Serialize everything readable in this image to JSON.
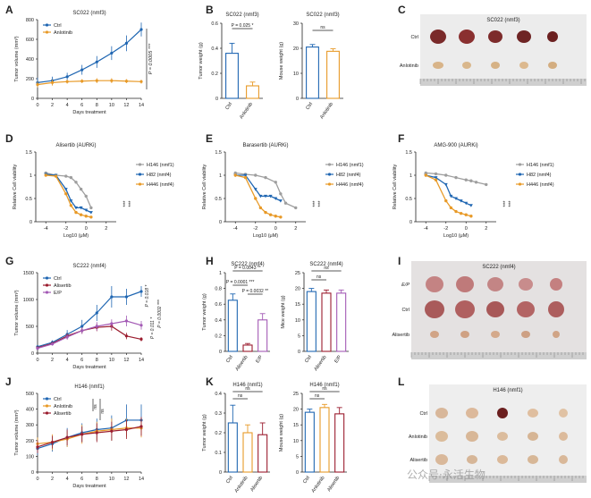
{
  "panel_labels": [
    "A",
    "B",
    "C",
    "D",
    "E",
    "F",
    "G",
    "H",
    "I",
    "J",
    "K",
    "L"
  ],
  "colors": {
    "ctrl": "#1f66b2",
    "anlotinib": "#e89a28",
    "alisertib": "#9b1c2e",
    "ep": "#a35ab5",
    "h146": "#9e9e9e",
    "h82": "#1f66b2",
    "h446": "#e89a28"
  },
  "watermark": "公众号·永活生物",
  "chart_data": [
    {
      "id": "A",
      "type": "line",
      "title": "SC022 (nmf3)",
      "xlabel": "Days treatment",
      "ylabel": "Tumor volume (mm³)",
      "xlim": [
        0,
        14
      ],
      "ylim": [
        0,
        800
      ],
      "yticks": [
        0,
        200,
        400,
        600,
        800
      ],
      "xticks": [
        0,
        2,
        4,
        6,
        8,
        10,
        12,
        14
      ],
      "series": [
        {
          "name": "Ctrl",
          "color": "#1f66b2",
          "x": [
            0,
            2,
            4,
            6,
            8,
            10,
            12,
            14
          ],
          "y": [
            160,
            180,
            220,
            290,
            370,
            460,
            560,
            700
          ],
          "err": [
            50,
            40,
            40,
            50,
            60,
            70,
            80,
            70
          ]
        },
        {
          "name": "Anlotinib",
          "color": "#e89a28",
          "x": [
            0,
            2,
            4,
            6,
            8,
            10,
            12,
            14
          ],
          "y": [
            140,
            160,
            170,
            175,
            180,
            180,
            175,
            170
          ],
          "err": [
            30,
            30,
            20,
            20,
            25,
            25,
            20,
            20
          ]
        }
      ],
      "annotation": "P = 0.0005 ***"
    },
    {
      "id": "B1",
      "type": "bar",
      "title": "SC022 (nmf3)",
      "ylabel": "Tumor weight (g)",
      "ylim": [
        0,
        0.6
      ],
      "yticks": [
        0,
        0.2,
        0.4,
        0.6
      ],
      "categories": [
        "Ctrl",
        "Anlotinib"
      ],
      "values": [
        0.36,
        0.1
      ],
      "err": [
        0.08,
        0.03
      ],
      "colors": [
        "#1f66b2",
        "#e89a28"
      ],
      "annotation": "P = 0.025 *"
    },
    {
      "id": "B2",
      "type": "bar",
      "title": "SC022 (nmf3)",
      "ylabel": "Mouse weight (g)",
      "ylim": [
        0,
        30
      ],
      "yticks": [
        0,
        10,
        20,
        30
      ],
      "categories": [
        "Ctrl",
        "Anlotinib"
      ],
      "values": [
        20.5,
        18.8
      ],
      "err": [
        1,
        1
      ],
      "colors": [
        "#1f66b2",
        "#e89a28"
      ],
      "annotation": "ns"
    },
    {
      "id": "D",
      "type": "line",
      "title": "Alisertib (AURKi)",
      "xlabel": "Log10 (μM)",
      "ylabel": "Relative Cell viability",
      "xlim": [
        -5,
        3
      ],
      "ylim": [
        0,
        1.5
      ],
      "xticks": [
        -4,
        -2,
        0,
        2
      ],
      "yticks": [
        0,
        0.5,
        1.0,
        1.5
      ],
      "series": [
        {
          "name": "H146 (nmf1)",
          "color": "#9e9e9e",
          "x": [
            -4,
            -3,
            -2,
            -1.5,
            -1,
            -0.5,
            0,
            0.5
          ],
          "y": [
            1.05,
            1.0,
            0.98,
            0.95,
            0.85,
            0.7,
            0.55,
            0.3
          ]
        },
        {
          "name": "H82 (nmf4)",
          "color": "#1f66b2",
          "x": [
            -4,
            -3,
            -2,
            -1.5,
            -1,
            -0.5,
            0,
            0.5
          ],
          "y": [
            1.02,
            1.0,
            0.7,
            0.45,
            0.3,
            0.3,
            0.25,
            0.2
          ]
        },
        {
          "name": "H446 (nmf4)",
          "color": "#e89a28",
          "x": [
            -4,
            -3,
            -2,
            -1.5,
            -1,
            -0.5,
            0,
            0.5
          ],
          "y": [
            1.0,
            0.98,
            0.6,
            0.35,
            0.2,
            0.15,
            0.12,
            0.1
          ]
        }
      ],
      "annotation": "*** ***"
    },
    {
      "id": "E",
      "type": "line",
      "title": "Barasertib (AURKi)",
      "xlabel": "Log10 (μM)",
      "ylabel": "Relative Cell viability",
      "xlim": [
        -5,
        3
      ],
      "ylim": [
        0,
        1.5
      ],
      "xticks": [
        -4,
        -2,
        0,
        2
      ],
      "yticks": [
        0,
        0.5,
        1.0,
        1.5
      ],
      "series": [
        {
          "name": "H146 (nmf1)",
          "color": "#9e9e9e",
          "x": [
            -4,
            -3,
            -2,
            -1,
            0,
            0.5,
            1,
            2
          ],
          "y": [
            1.05,
            1.02,
            1.0,
            0.95,
            0.85,
            0.6,
            0.4,
            0.3
          ]
        },
        {
          "name": "H82 (nmf4)",
          "color": "#1f66b2",
          "x": [
            -4,
            -3,
            -2,
            -1.5,
            -1,
            -0.5,
            0,
            0.5
          ],
          "y": [
            1.0,
            1.0,
            0.7,
            0.55,
            0.55,
            0.55,
            0.5,
            0.45
          ]
        },
        {
          "name": "H446 (nmf4)",
          "color": "#e89a28",
          "x": [
            -4,
            -3,
            -2,
            -1.5,
            -1,
            -0.5,
            0,
            0.5
          ],
          "y": [
            1.0,
            0.95,
            0.5,
            0.3,
            0.2,
            0.15,
            0.12,
            0.1
          ]
        }
      ],
      "annotation": "*** ***"
    },
    {
      "id": "F",
      "type": "line",
      "title": "AMG-900 (AURKi)",
      "xlabel": "Log10 (μM)",
      "ylabel": "Relative Cell viability",
      "xlim": [
        -5,
        3
      ],
      "ylim": [
        0,
        1.5
      ],
      "xticks": [
        -4,
        -2,
        0,
        2
      ],
      "yticks": [
        0,
        0.5,
        1.0,
        1.5
      ],
      "series": [
        {
          "name": "H146 (nmf1)",
          "color": "#9e9e9e",
          "x": [
            -4,
            -3,
            -2,
            -1,
            0,
            0.5,
            1,
            2
          ],
          "y": [
            1.05,
            1.03,
            1.0,
            0.95,
            0.9,
            0.88,
            0.85,
            0.8
          ]
        },
        {
          "name": "H82 (nmf4)",
          "color": "#1f66b2",
          "x": [
            -4,
            -3,
            -2,
            -1.5,
            -1,
            -0.5,
            0,
            0.5
          ],
          "y": [
            1.0,
            0.95,
            0.8,
            0.55,
            0.5,
            0.45,
            0.4,
            0.35
          ]
        },
        {
          "name": "H446 (nmf4)",
          "color": "#e89a28",
          "x": [
            -4,
            -3,
            -2,
            -1.5,
            -1,
            -0.5,
            0,
            0.5
          ],
          "y": [
            1.0,
            0.9,
            0.45,
            0.3,
            0.22,
            0.18,
            0.15,
            0.12
          ]
        }
      ],
      "annotation": "*** ***"
    },
    {
      "id": "G",
      "type": "line",
      "title": "SC222 (nmf4)",
      "xlabel": "Days treatment",
      "ylabel": "Tumor volume (mm³)",
      "xlim": [
        0,
        14
      ],
      "ylim": [
        0,
        1500
      ],
      "yticks": [
        0,
        500,
        1000,
        1500
      ],
      "xticks": [
        0,
        2,
        4,
        6,
        8,
        10,
        12,
        14
      ],
      "series": [
        {
          "name": "Ctrl",
          "color": "#1f66b2",
          "x": [
            0,
            2,
            4,
            6,
            8,
            10,
            12,
            14
          ],
          "y": [
            120,
            200,
            350,
            500,
            750,
            1050,
            1050,
            1150
          ],
          "err": [
            30,
            40,
            80,
            120,
            150,
            200,
            150,
            100
          ]
        },
        {
          "name": "Alisertib",
          "color": "#9b1c2e",
          "x": [
            0,
            2,
            4,
            6,
            8,
            10,
            12,
            14
          ],
          "y": [
            100,
            180,
            320,
            420,
            480,
            500,
            320,
            260
          ],
          "err": [
            20,
            30,
            50,
            60,
            70,
            80,
            60,
            40
          ]
        },
        {
          "name": "E/P",
          "color": "#a35ab5",
          "x": [
            0,
            2,
            4,
            6,
            8,
            10,
            12,
            14
          ],
          "y": [
            90,
            170,
            300,
            420,
            500,
            550,
            600,
            520
          ],
          "err": [
            20,
            30,
            50,
            60,
            80,
            80,
            100,
            80
          ]
        }
      ],
      "annotation": "P = 0.018 *  P = 0.011 *  P = 0.0002 ***"
    },
    {
      "id": "H1",
      "type": "bar",
      "title": "SC222 (nmf4)",
      "ylabel": "Tumor weight (g)",
      "ylim": [
        0,
        1.0
      ],
      "yticks": [
        0,
        0.2,
        0.4,
        0.6,
        0.8,
        1.0
      ],
      "categories": [
        "Ctrl",
        "Alisertib",
        "E/P"
      ],
      "values": [
        0.65,
        0.08,
        0.4
      ],
      "err": [
        0.08,
        0.02,
        0.08
      ],
      "colors": [
        "#1f66b2",
        "#9b1c2e",
        "#a35ab5"
      ],
      "annotation": "P = 0.0043 **  P = 0.0001 ***  P = 0.0032 **"
    },
    {
      "id": "H2",
      "type": "bar",
      "title": "SC222 (nmf4)",
      "ylabel": "Mice weight (g)",
      "ylim": [
        0,
        25
      ],
      "yticks": [
        0,
        5,
        10,
        15,
        20,
        25
      ],
      "categories": [
        "Ctrl",
        "Alisertib",
        "E/P"
      ],
      "values": [
        19,
        18.5,
        18.5
      ],
      "err": [
        1,
        1,
        1
      ],
      "colors": [
        "#1f66b2",
        "#9b1c2e",
        "#a35ab5"
      ],
      "annotation": "ns ns"
    },
    {
      "id": "J",
      "type": "line",
      "title": "H146 (nmf1)",
      "xlabel": "Days treatment",
      "ylabel": "Tumor volume (mm³)",
      "xlim": [
        0,
        14
      ],
      "ylim": [
        0,
        500
      ],
      "yticks": [
        0,
        100,
        200,
        300,
        400,
        500
      ],
      "xticks": [
        0,
        2,
        4,
        6,
        8,
        10,
        12,
        14
      ],
      "series": [
        {
          "name": "Ctrl",
          "color": "#1f66b2",
          "x": [
            0,
            2,
            4,
            6,
            8,
            10,
            12,
            14
          ],
          "y": [
            150,
            180,
            220,
            250,
            270,
            280,
            330,
            330
          ],
          "err": [
            40,
            50,
            60,
            60,
            70,
            80,
            100,
            100
          ]
        },
        {
          "name": "Anlotinib",
          "color": "#e89a28",
          "x": [
            0,
            2,
            4,
            6,
            8,
            10,
            12,
            14
          ],
          "y": [
            180,
            190,
            210,
            240,
            260,
            270,
            280,
            280
          ],
          "err": [
            40,
            50,
            50,
            60,
            60,
            70,
            60,
            60
          ]
        },
        {
          "name": "Alisertib",
          "color": "#9b1c2e",
          "x": [
            0,
            2,
            4,
            6,
            8,
            10,
            12,
            14
          ],
          "y": [
            160,
            190,
            220,
            240,
            250,
            260,
            270,
            290
          ],
          "err": [
            40,
            40,
            50,
            50,
            60,
            60,
            60,
            60
          ]
        }
      ],
      "annotation": "ns ns"
    },
    {
      "id": "K1",
      "type": "bar",
      "title": "H146 (nmf1)",
      "ylabel": "Tumor weight (g)",
      "ylim": [
        0,
        0.4
      ],
      "yticks": [
        0,
        0.1,
        0.2,
        0.3,
        0.4
      ],
      "categories": [
        "Ctrl",
        "Anlotinib",
        "Alisertib"
      ],
      "values": [
        0.25,
        0.2,
        0.19
      ],
      "err": [
        0.09,
        0.04,
        0.06
      ],
      "colors": [
        "#1f66b2",
        "#e89a28",
        "#9b1c2e"
      ],
      "annotation": "ns ns"
    },
    {
      "id": "K2",
      "type": "bar",
      "title": "H146 (nmf1)",
      "ylabel": "Mouse weight (g)",
      "ylim": [
        0,
        25
      ],
      "yticks": [
        0,
        5,
        10,
        15,
        20,
        25
      ],
      "categories": [
        "Ctrl",
        "Anlotinib",
        "Alisertib"
      ],
      "values": [
        19,
        20.5,
        18.5
      ],
      "err": [
        1,
        1,
        2
      ],
      "colors": [
        "#1f66b2",
        "#e89a28",
        "#9b1c2e"
      ],
      "annotation": "ns ns"
    }
  ],
  "photos": [
    {
      "id": "C",
      "title": "SC022 (nmf3)",
      "rows": [
        "Ctrl",
        "Anlotinib"
      ]
    },
    {
      "id": "I",
      "title": "SC222 (nmf4)",
      "rows": [
        "E/P",
        "Ctrl",
        "Alisertib"
      ]
    },
    {
      "id": "L",
      "title": "H146 (nmf1)",
      "rows": [
        "Ctrl",
        "Anlotinib",
        "Alisertib"
      ]
    }
  ]
}
